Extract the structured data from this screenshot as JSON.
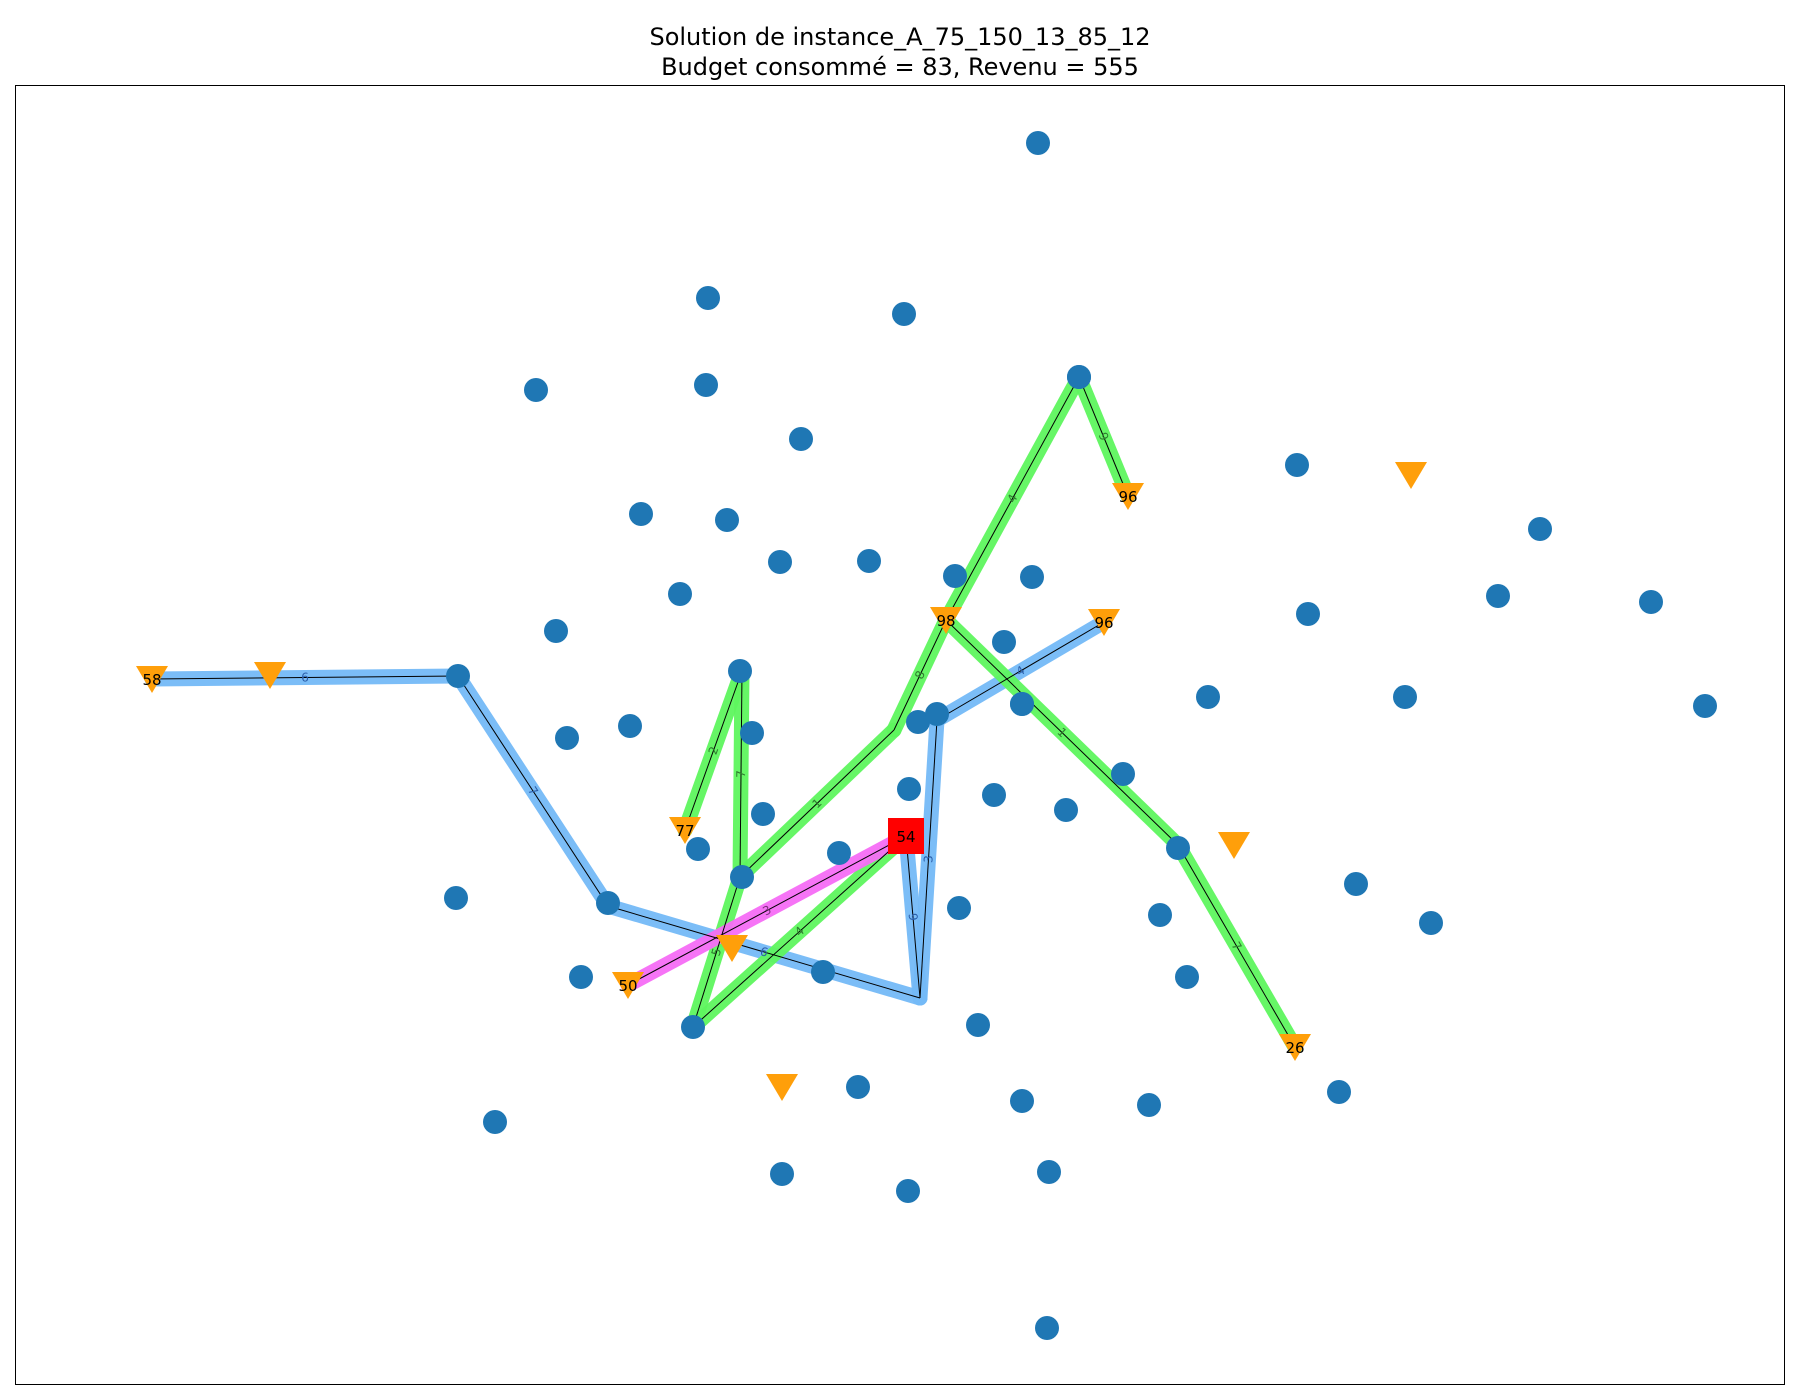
{
  "title": {
    "line1": "Solution de instance_A_75_150_13_85_12",
    "line2": "Budget consommé = 83, Revenu = 555"
  },
  "colors": {
    "node": "#1f77b4",
    "customer": "#ff9f0a",
    "depot": "#ff0000",
    "route_blue": "#74b9f7",
    "route_green": "#5ef55e",
    "route_magenta": "#f56df5",
    "edge": "#000000"
  },
  "depot_label": "54",
  "customer_labels": [
    "58",
    "50",
    "77",
    "98",
    "96",
    "96",
    "26"
  ],
  "routes": [
    {
      "color_key": "route_blue",
      "edges": [
        {
          "weight": "6"
        },
        {
          "weight": "7"
        },
        {
          "weight": "6"
        },
        {
          "weight": "9"
        },
        {
          "weight": "3"
        },
        {
          "weight": "4"
        }
      ]
    },
    {
      "color_key": "route_green",
      "edges": [
        {
          "weight": "4"
        },
        {
          "weight": "5"
        },
        {
          "weight": "7"
        },
        {
          "weight": "2"
        },
        {
          "weight": "1"
        },
        {
          "weight": "8"
        },
        {
          "weight": "4"
        },
        {
          "weight": "9"
        },
        {
          "weight": "1"
        },
        {
          "weight": "7"
        }
      ]
    },
    {
      "color_key": "route_magenta",
      "edges": [
        {
          "weight": "3"
        }
      ]
    }
  ]
}
